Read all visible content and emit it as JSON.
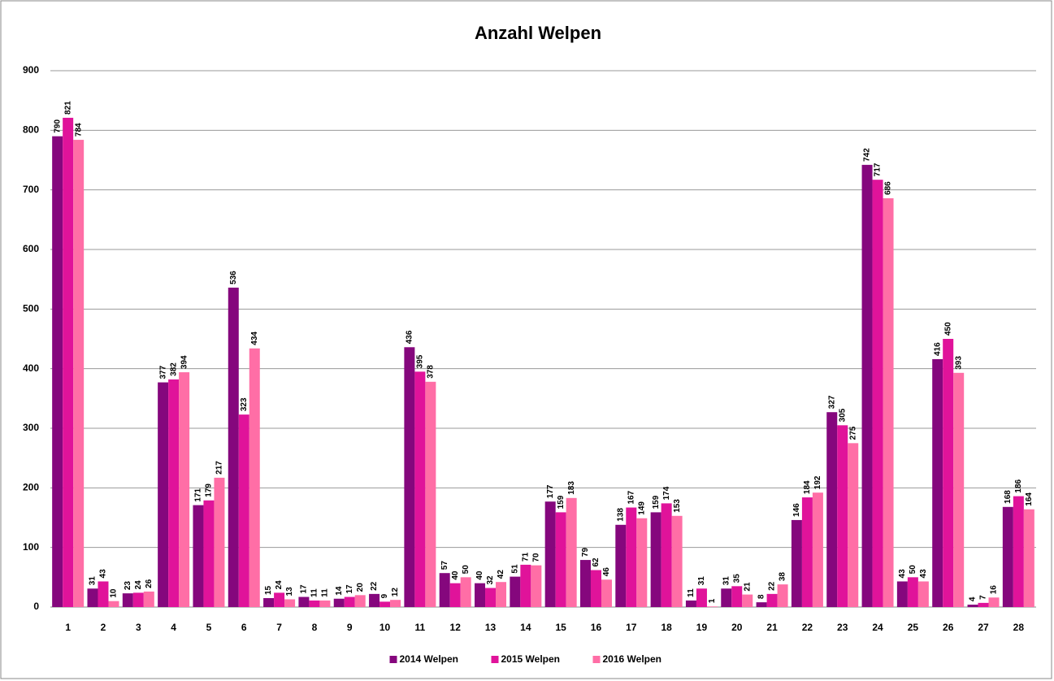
{
  "chart_data": {
    "type": "bar",
    "title": "Anzahl Welpen",
    "categories": [
      "1",
      "2",
      "3",
      "4",
      "5",
      "6",
      "7",
      "8",
      "9",
      "10",
      "11",
      "12",
      "13",
      "14",
      "15",
      "16",
      "17",
      "18",
      "19",
      "20",
      "21",
      "22",
      "23",
      "24",
      "25",
      "26",
      "27",
      "28"
    ],
    "series": [
      {
        "name": "2014 Welpen",
        "color": "#85077d",
        "values": [
          790,
          31,
          23,
          377,
          171,
          536,
          15,
          17,
          14,
          22,
          436,
          57,
          40,
          51,
          177,
          79,
          138,
          159,
          11,
          31,
          8,
          146,
          327,
          742,
          43,
          416,
          4,
          168
        ]
      },
      {
        "name": "2015 Welpen",
        "color": "#e0139a",
        "values": [
          821,
          43,
          24,
          382,
          179,
          323,
          24,
          11,
          17,
          9,
          395,
          40,
          32,
          71,
          159,
          62,
          167,
          174,
          31,
          35,
          22,
          184,
          305,
          717,
          50,
          450,
          7,
          186
        ]
      },
      {
        "name": "2016 Welpen",
        "color": "#ff6ea6",
        "values": [
          784,
          10,
          26,
          394,
          217,
          434,
          13,
          11,
          20,
          12,
          378,
          50,
          42,
          70,
          183,
          46,
          149,
          153,
          1,
          21,
          38,
          192,
          275,
          686,
          43,
          393,
          16,
          164
        ]
      }
    ],
    "ylim": [
      0,
      900
    ],
    "yticks": [
      0,
      100,
      200,
      300,
      400,
      500,
      600,
      700,
      800,
      900
    ],
    "grid": true,
    "legend": "bottom"
  }
}
